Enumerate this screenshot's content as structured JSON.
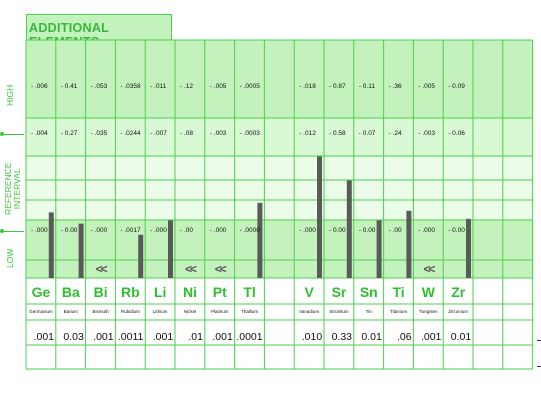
{
  "title": "ADDITIONAL ELEMENTS",
  "axis_labels": {
    "high": "HIGH",
    "reference": "REFERENCE\nINTERVAL",
    "low": "LOW"
  },
  "colors": {
    "grid": "#4bd14b",
    "band_dark": "#c4f2bd",
    "band_mid": "#d9f8d4",
    "band_light": "#ebfce8",
    "bar": "#5a5a5a",
    "symbol": "#2fbf2f"
  },
  "chart_data": {
    "type": "bar",
    "title": "ADDITIONAL ELEMENTS",
    "rows": [
      "HIGH",
      "REFERENCE INTERVAL",
      "LOW"
    ],
    "elements": [
      {
        "symbol": "Ge",
        "name": "Germanium",
        "high": ".006",
        "mid": ".004",
        "low": ".000",
        "result": ".001",
        "bar_level": 0.41,
        "below_range": false
      },
      {
        "symbol": "Ba",
        "name": "Barium",
        "high": "0.41",
        "mid": "0.27",
        "low": "0.00",
        "result": "0.03",
        "bar_level": 0.34,
        "below_range": false
      },
      {
        "symbol": "Bi",
        "name": "Bismuth",
        "high": ".053",
        "mid": ".035",
        "low": ".000",
        "result": ".001",
        "bar_level": 0.0,
        "below_range": true
      },
      {
        "symbol": "Rb",
        "name": "Rubidium",
        "high": ".0358",
        "mid": ".0244",
        "low": ".0017",
        "result": ".0011",
        "bar_level": 0.27,
        "below_range": false
      },
      {
        "symbol": "Li",
        "name": "Lithium",
        "high": ".011",
        "mid": ".007",
        "low": ".000",
        "result": ".001",
        "bar_level": 0.36,
        "below_range": false
      },
      {
        "symbol": "Ni",
        "name": "Nickel",
        "high": ".12",
        "mid": ".08",
        "low": ".00",
        "result": ".01",
        "bar_level": 0.0,
        "below_range": true
      },
      {
        "symbol": "Pt",
        "name": "Platinum",
        "high": ".005",
        "mid": ".003",
        "low": ".000",
        "result": ".001",
        "bar_level": 0.0,
        "below_range": true
      },
      {
        "symbol": "Tl",
        "name": "Thallium",
        "high": ".0005",
        "mid": ".0003",
        "low": ".0000",
        "result": ".0001",
        "bar_level": 0.47,
        "below_range": false
      },
      {
        "symbol": "",
        "name": "",
        "high": "",
        "mid": "",
        "low": "",
        "result": "",
        "bar_level": 0.0,
        "below_range": false
      },
      {
        "symbol": "V",
        "name": "Vanadium",
        "high": ".018",
        "mid": ".012",
        "low": ".000",
        "result": ".010",
        "bar_level": 0.76,
        "below_range": false
      },
      {
        "symbol": "Sr",
        "name": "Strontium",
        "high": "0.87",
        "mid": "0.58",
        "low": "0.00",
        "result": "0.33",
        "bar_level": 0.61,
        "below_range": false
      },
      {
        "symbol": "Sn",
        "name": "Tin",
        "high": "0.11",
        "mid": "0.07",
        "low": "0.00",
        "result": "0.01",
        "bar_level": 0.36,
        "below_range": false
      },
      {
        "symbol": "Ti",
        "name": "Titanium",
        "high": ".36",
        "mid": ".24",
        "low": ".00",
        "result": ".06",
        "bar_level": 0.42,
        "below_range": false
      },
      {
        "symbol": "W",
        "name": "Tungsten",
        "high": ".005",
        "mid": ".003",
        "low": ".000",
        "result": ".001",
        "bar_level": 0.0,
        "below_range": true
      },
      {
        "symbol": "Zr",
        "name": "Zirconium",
        "high": "0.09",
        "mid": "0.06",
        "low": "0.00",
        "result": "0.01",
        "bar_level": 0.37,
        "below_range": false
      },
      {
        "symbol": "",
        "name": "",
        "high": "",
        "mid": "",
        "low": "",
        "result": "",
        "bar_level": 0.0,
        "below_range": false
      },
      {
        "symbol": "",
        "name": "",
        "high": "",
        "mid": "",
        "low": "",
        "result": "",
        "bar_level": 0.0,
        "below_range": false
      }
    ],
    "below_range_marker": "<<"
  }
}
